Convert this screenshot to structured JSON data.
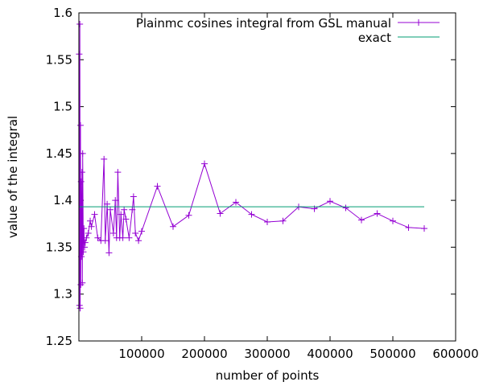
{
  "chart_data": {
    "type": "line",
    "title": "",
    "xlabel": "number of points",
    "ylabel": "value of the integral",
    "xlim": [
      0,
      600000
    ],
    "ylim": [
      1.25,
      1.6
    ],
    "xticks": [
      100000,
      200000,
      300000,
      400000,
      500000,
      600000
    ],
    "xtick_labels": [
      "100000",
      "200000",
      "300000",
      "400000",
      "500000",
      "600000"
    ],
    "yticks": [
      1.25,
      1.3,
      1.35,
      1.4,
      1.45,
      1.5,
      1.55,
      1.6
    ],
    "ytick_labels": [
      "1.25",
      "1.3",
      "1.35",
      "1.4",
      "1.45",
      "1.5",
      "1.55",
      "1.6"
    ],
    "legend_position": "top-right",
    "grid": false,
    "series": [
      {
        "name": "Plainmc cosines integral from GSL manual",
        "color": "#9400d3",
        "marker": "plus",
        "x": [
          500,
          1000,
          1500,
          2000,
          2500,
          3000,
          3500,
          4000,
          4500,
          5000,
          5500,
          6000,
          7000,
          8000,
          9000,
          10000,
          12000,
          15000,
          18000,
          20000,
          25000,
          30000,
          35000,
          40000,
          42000,
          45000,
          48000,
          50000,
          55000,
          58000,
          60000,
          62000,
          65000,
          67000,
          70000,
          72000,
          75000,
          80000,
          85000,
          87000,
          90000,
          95000,
          100000,
          125000,
          150000,
          175000,
          200000,
          225000,
          250000,
          275000,
          300000,
          325000,
          350000,
          375000,
          400000,
          425000,
          450000,
          475000,
          500000,
          525000,
          550000
        ],
        "y": [
          1.556,
          1.288,
          1.588,
          1.285,
          1.48,
          1.31,
          1.42,
          1.34,
          1.35,
          1.43,
          1.312,
          1.45,
          1.345,
          1.37,
          1.35,
          1.355,
          1.36,
          1.365,
          1.378,
          1.372,
          1.385,
          1.36,
          1.357,
          1.444,
          1.357,
          1.396,
          1.344,
          1.39,
          1.365,
          1.4,
          1.36,
          1.43,
          1.36,
          1.385,
          1.36,
          1.39,
          1.38,
          1.36,
          1.39,
          1.404,
          1.365,
          1.357,
          1.367,
          1.415,
          1.372,
          1.384,
          1.439,
          1.386,
          1.398,
          1.385,
          1.377,
          1.378,
          1.393,
          1.391,
          1.399,
          1.392,
          1.379,
          1.386,
          1.378,
          1.371,
          1.37
        ]
      },
      {
        "name": "exact",
        "color": "#009e73",
        "x": [
          0,
          550000
        ],
        "y": [
          1.3932,
          1.3932
        ]
      }
    ]
  }
}
